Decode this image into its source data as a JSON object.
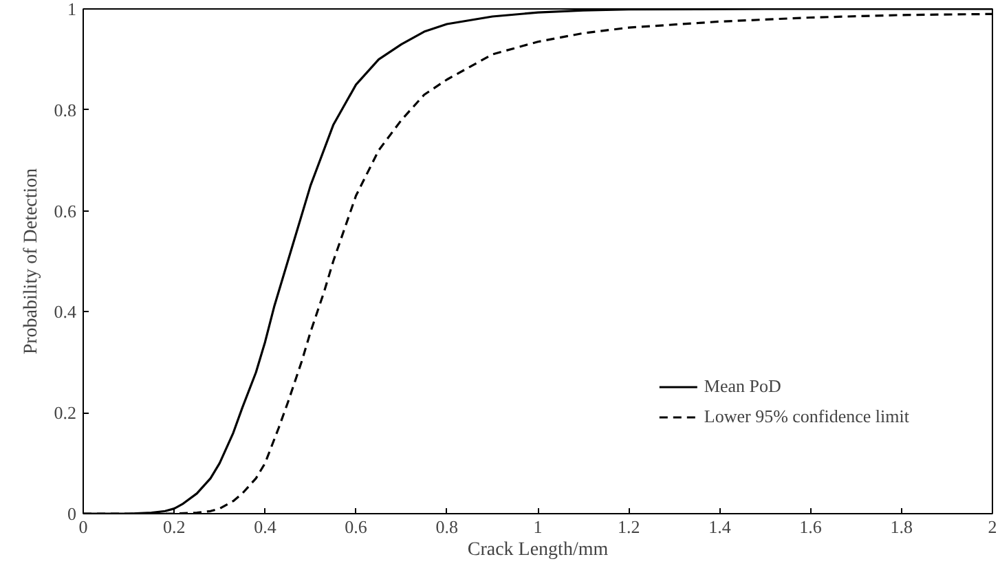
{
  "chart_data": {
    "type": "line",
    "xlabel": "Crack Length/mm",
    "ylabel": "Probability of Detection",
    "xlim": [
      0,
      2
    ],
    "ylim": [
      0,
      1
    ],
    "xticks": [
      0,
      0.2,
      0.4,
      0.6,
      0.8,
      1,
      1.2,
      1.4,
      1.6,
      1.8,
      2
    ],
    "yticks": [
      0,
      0.2,
      0.4,
      0.6,
      0.8,
      1
    ],
    "grid": false,
    "legend": "bottom right",
    "marker": "none",
    "series": [
      {
        "name": "Mean PoD",
        "color": "#000000",
        "line_style": "solid",
        "x": [
          0,
          0.1,
          0.15,
          0.18,
          0.2,
          0.22,
          0.25,
          0.28,
          0.3,
          0.33,
          0.35,
          0.38,
          0.4,
          0.42,
          0.45,
          0.48,
          0.5,
          0.55,
          0.6,
          0.65,
          0.7,
          0.75,
          0.8,
          0.9,
          1.0,
          1.1,
          1.2,
          1.5,
          2.0
        ],
        "values": [
          0,
          0,
          0.002,
          0.005,
          0.01,
          0.02,
          0.04,
          0.07,
          0.1,
          0.16,
          0.21,
          0.28,
          0.34,
          0.41,
          0.5,
          0.59,
          0.65,
          0.77,
          0.85,
          0.9,
          0.93,
          0.955,
          0.97,
          0.985,
          0.993,
          0.997,
          0.999,
          1,
          1
        ]
      },
      {
        "name": "Lower 95% confidence limit",
        "color": "#000000",
        "line_style": "dashed",
        "x": [
          0,
          0.2,
          0.25,
          0.28,
          0.3,
          0.33,
          0.35,
          0.38,
          0.4,
          0.43,
          0.45,
          0.48,
          0.5,
          0.53,
          0.55,
          0.6,
          0.65,
          0.7,
          0.75,
          0.8,
          0.9,
          1.0,
          1.1,
          1.2,
          1.4,
          1.6,
          1.8,
          2.0
        ],
        "values": [
          0,
          0,
          0.002,
          0.005,
          0.01,
          0.025,
          0.04,
          0.07,
          0.1,
          0.17,
          0.22,
          0.3,
          0.36,
          0.44,
          0.5,
          0.63,
          0.72,
          0.78,
          0.83,
          0.86,
          0.91,
          0.935,
          0.952,
          0.963,
          0.975,
          0.983,
          0.988,
          0.99
        ]
      }
    ]
  }
}
